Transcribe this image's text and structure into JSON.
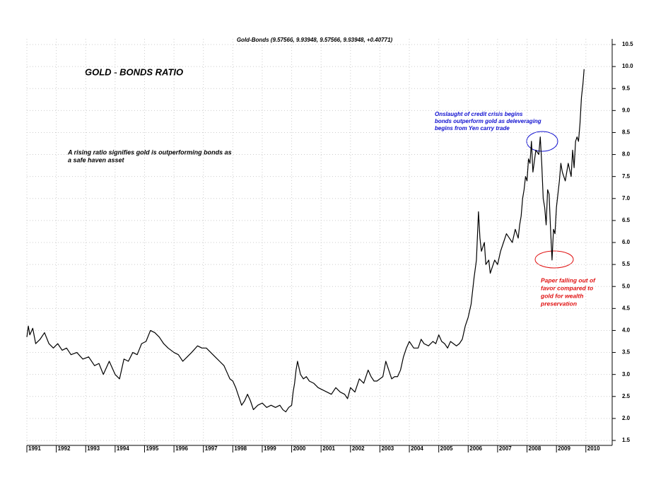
{
  "chart_data": {
    "type": "line",
    "title": "Gold-Bonds (9.57566, 9.93948, 9.57566, 9.93948, +0.40771)",
    "heading": "GOLD - BONDS RATIO",
    "note_lines": [
      "A rising ratio signifies gold is outperforming bonds as",
      "a safe haven asset"
    ],
    "blue_note_lines": [
      "Onslaught of credit crisis begins",
      "bonds outperform gold as deleveraging",
      "begins from Yen carry trade"
    ],
    "red_note_lines": [
      "Paper falling out of",
      "favor compared to",
      "gold for wealth",
      "preservation"
    ],
    "color": "#000000",
    "x": [
      1991.0,
      1991.05,
      1991.1,
      1991.2,
      1991.3,
      1991.45,
      1991.6,
      1991.75,
      1991.9,
      1992.05,
      1992.2,
      1992.35,
      1992.5,
      1992.7,
      1992.9,
      1993.1,
      1993.3,
      1993.45,
      1993.6,
      1993.8,
      1994.0,
      1994.15,
      1994.3,
      1994.45,
      1994.6,
      1994.75,
      1994.9,
      1995.05,
      1995.2,
      1995.35,
      1995.5,
      1995.65,
      1995.8,
      1996.0,
      1996.15,
      1996.3,
      1996.45,
      1996.6,
      1996.8,
      1996.95,
      1997.1,
      1997.25,
      1997.4,
      1997.55,
      1997.7,
      1997.8,
      1997.9,
      1998.0,
      1998.1,
      1998.2,
      1998.3,
      1998.4,
      1998.5,
      1998.6,
      1998.7,
      1998.85,
      1999.0,
      1999.15,
      1999.3,
      1999.45,
      1999.6,
      1999.7,
      1999.8,
      1999.9,
      2000.0,
      2000.05,
      2000.1,
      2000.15,
      2000.2,
      2000.3,
      2000.4,
      2000.5,
      2000.6,
      2000.75,
      2000.9,
      2001.05,
      2001.2,
      2001.35,
      2001.5,
      2001.65,
      2001.8,
      2001.9,
      2002.0,
      2002.15,
      2002.3,
      2002.45,
      2002.6,
      2002.7,
      2002.8,
      2002.9,
      2003.0,
      2003.1,
      2003.2,
      2003.3,
      2003.4,
      2003.5,
      2003.6,
      2003.7,
      2003.8,
      2003.9,
      2004.0,
      2004.15,
      2004.3,
      2004.4,
      2004.5,
      2004.65,
      2004.8,
      2004.9,
      2005.0,
      2005.1,
      2005.2,
      2005.3,
      2005.4,
      2005.5,
      2005.6,
      2005.7,
      2005.8,
      2005.9,
      2006.0,
      2006.1,
      2006.2,
      2006.28,
      2006.35,
      2006.4,
      2006.45,
      2006.55,
      2006.6,
      2006.7,
      2006.75,
      2006.85,
      2006.9,
      2007.0,
      2007.1,
      2007.2,
      2007.3,
      2007.4,
      2007.5,
      2007.6,
      2007.7,
      2007.75,
      2007.8,
      2007.85,
      2007.9,
      2007.95,
      2008.0,
      2008.05,
      2008.1,
      2008.15,
      2008.2,
      2008.3,
      2008.4,
      2008.45,
      2008.5,
      2008.55,
      2008.6,
      2008.65,
      2008.7,
      2008.75,
      2008.8,
      2008.85,
      2008.9,
      2008.95,
      2009.0,
      2009.05,
      2009.1,
      2009.15,
      2009.2,
      2009.3,
      2009.4,
      2009.5,
      2009.55,
      2009.6,
      2009.65,
      2009.7,
      2009.75,
      2009.8,
      2009.85,
      2009.9,
      2009.94
    ],
    "values": [
      3.85,
      4.1,
      3.9,
      4.05,
      3.7,
      3.8,
      3.95,
      3.7,
      3.6,
      3.7,
      3.55,
      3.6,
      3.45,
      3.5,
      3.35,
      3.4,
      3.2,
      3.25,
      3.0,
      3.3,
      3.0,
      2.9,
      3.35,
      3.3,
      3.5,
      3.45,
      3.7,
      3.75,
      4.0,
      3.95,
      3.85,
      3.7,
      3.6,
      3.5,
      3.45,
      3.3,
      3.4,
      3.5,
      3.65,
      3.6,
      3.6,
      3.5,
      3.4,
      3.3,
      3.2,
      3.05,
      2.9,
      2.85,
      2.7,
      2.5,
      2.3,
      2.4,
      2.55,
      2.4,
      2.2,
      2.3,
      2.35,
      2.25,
      2.3,
      2.25,
      2.3,
      2.2,
      2.15,
      2.25,
      2.3,
      2.6,
      2.8,
      3.1,
      3.3,
      3.0,
      2.9,
      2.95,
      2.85,
      2.8,
      2.7,
      2.65,
      2.6,
      2.55,
      2.7,
      2.6,
      2.55,
      2.45,
      2.7,
      2.6,
      2.9,
      2.8,
      3.1,
      2.95,
      2.85,
      2.85,
      2.9,
      2.95,
      3.3,
      3.1,
      2.9,
      2.95,
      2.95,
      3.1,
      3.4,
      3.6,
      3.75,
      3.6,
      3.6,
      3.8,
      3.7,
      3.65,
      3.75,
      3.7,
      3.9,
      3.75,
      3.7,
      3.6,
      3.75,
      3.7,
      3.65,
      3.7,
      3.8,
      4.1,
      4.3,
      4.6,
      5.2,
      5.6,
      6.7,
      6.1,
      5.8,
      6.0,
      5.5,
      5.6,
      5.3,
      5.5,
      5.6,
      5.5,
      5.8,
      6.0,
      6.2,
      6.1,
      6.0,
      6.3,
      6.1,
      6.4,
      6.6,
      7.0,
      7.2,
      7.5,
      7.4,
      7.9,
      7.8,
      8.3,
      7.6,
      8.1,
      8.0,
      8.4,
      7.8,
      7.0,
      6.8,
      6.4,
      7.2,
      7.1,
      6.3,
      5.6,
      6.3,
      6.2,
      6.8,
      7.1,
      7.4,
      7.8,
      7.6,
      7.4,
      7.8,
      7.5,
      8.1,
      7.7,
      8.3,
      8.4,
      8.3,
      8.7,
      9.3,
      9.6,
      9.94
    ],
    "xlim": [
      1991,
      2010.75
    ],
    "xticks": [
      1991,
      1992,
      1993,
      1994,
      1995,
      1996,
      1997,
      1998,
      1999,
      2000,
      2001,
      2002,
      2003,
      2004,
      2005,
      2006,
      2007,
      2008,
      2009,
      2010
    ],
    "ylim": [
      1.5,
      10.5
    ],
    "yticks": [
      1.5,
      {
        "value": 2,
        "label": "2.0"
      },
      2.5,
      {
        "value": 3,
        "label": "3.0"
      },
      3.5,
      {
        "value": 4,
        "label": "4.0"
      },
      4.5,
      {
        "value": 5,
        "label": "5.0"
      },
      5.5,
      {
        "value": 6,
        "label": "6.0"
      },
      6.5,
      {
        "value": 7,
        "label": "7.0"
      },
      7.5,
      {
        "value": 8,
        "label": "8.0"
      },
      8.5,
      {
        "value": 9,
        "label": "9.0"
      },
      9.5,
      {
        "value": 10,
        "label": "10.0"
      },
      10.5
    ],
    "grid": true
  }
}
